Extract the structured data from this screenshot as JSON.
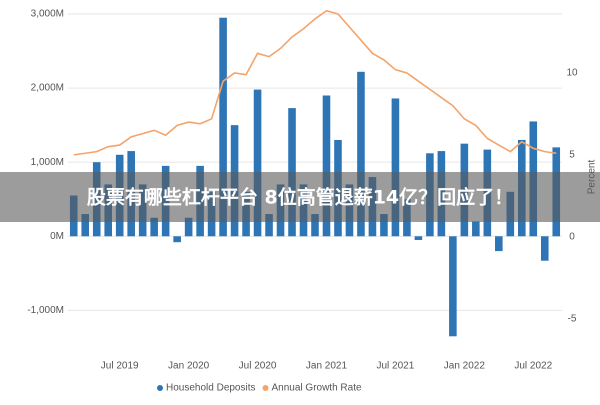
{
  "chart_data": {
    "type": "bar-line",
    "categories": [
      null,
      null,
      null,
      null,
      "Jul 2019",
      null,
      null,
      null,
      null,
      null,
      "Jan 2020",
      null,
      null,
      null,
      null,
      null,
      "Jul 2020",
      null,
      null,
      null,
      null,
      null,
      "Jan 2021",
      null,
      null,
      null,
      null,
      null,
      "Jul 2021",
      null,
      null,
      null,
      null,
      null,
      "Jan 2022",
      null,
      null,
      null,
      null,
      null,
      "Jul 2022",
      null,
      null
    ],
    "series": [
      {
        "name": "Household Deposits",
        "color": "#2e75b6",
        "type": "bar",
        "values": [
          550,
          300,
          1000,
          700,
          1100,
          1150,
          700,
          250,
          950,
          -80,
          250,
          950,
          600,
          2950,
          1500,
          600,
          1980,
          300,
          700,
          1730,
          700,
          300,
          1900,
          1300,
          700,
          2220,
          800,
          300,
          1860,
          500,
          -50,
          1120,
          1150,
          -1350,
          1250,
          200,
          1170,
          -200,
          600,
          1300,
          1550,
          -330,
          1200
        ]
      },
      {
        "name": "Annual Growth Rate",
        "color": "#f4a46a",
        "type": "line",
        "axis": "y2",
        "values": [
          5,
          5.1,
          5.2,
          5.5,
          5.6,
          6.1,
          6.3,
          6.5,
          6.2,
          6.8,
          7,
          6.9,
          7.2,
          9.5,
          10,
          9.9,
          11.2,
          11,
          11.5,
          12.2,
          12.7,
          13.3,
          13.8,
          13.6,
          12.8,
          12,
          11.2,
          10.8,
          10.2,
          10,
          9.5,
          9,
          8.5,
          8,
          7.2,
          6.8,
          6,
          5.6,
          5.2,
          5.8,
          5.4,
          5.2,
          5.1
        ]
      }
    ],
    "ylim": [
      -1400,
      3000
    ],
    "yticks": [
      {
        "value": -1000,
        "label": "-1,000M"
      },
      {
        "value": 0,
        "label": "0M"
      },
      {
        "value": 1000,
        "label": "1,000M"
      },
      {
        "value": 2000,
        "label": "2,000M"
      },
      {
        "value": 3000,
        "label": "3,000M"
      }
    ],
    "y2lim": [
      -6.3,
      13.6
    ],
    "y2ticks": [
      -5,
      0,
      5,
      10
    ],
    "y2label": "Percent",
    "legend": "bottom"
  },
  "banner": "股票有哪些杠杆平台 8位高管退薪14亿？回应了！"
}
